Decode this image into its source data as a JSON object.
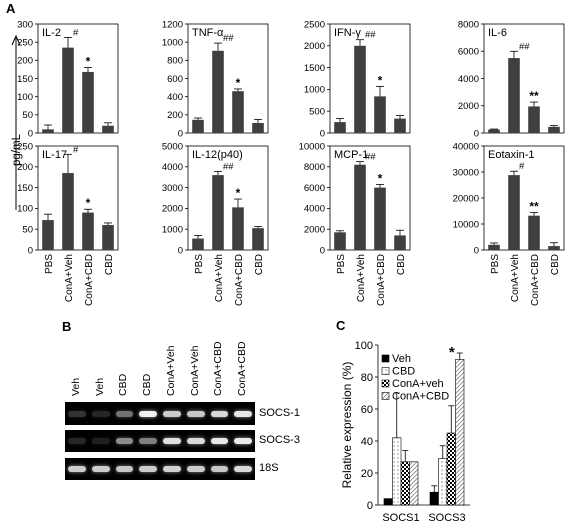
{
  "panel_letters": {
    "a": "A",
    "b": "B",
    "c": "C"
  },
  "panel_a": {
    "ylabel": "pg/mL",
    "categories": [
      "PBS",
      "ConA+Veh",
      "ConA+CBD",
      "CBD"
    ]
  },
  "chart_data": [
    {
      "type": "bar",
      "title": "IL-2",
      "categories": [
        "PBS",
        "ConA+Veh",
        "ConA+CBD",
        "CBD"
      ],
      "values": [
        10,
        235,
        168,
        20
      ],
      "errors": [
        12,
        28,
        12,
        8
      ],
      "marks": [
        "",
        "#",
        "*",
        ""
      ],
      "ylim": [
        0,
        300
      ],
      "yticks": [
        0,
        50,
        100,
        150,
        200,
        250,
        300
      ]
    },
    {
      "type": "bar",
      "title": "TNF-α",
      "categories": [
        "PBS",
        "ConA+Veh",
        "ConA+CBD",
        "CBD"
      ],
      "values": [
        145,
        905,
        460,
        110
      ],
      "errors": [
        20,
        85,
        25,
        40
      ],
      "marks": [
        "",
        "##",
        "*",
        ""
      ],
      "ylim": [
        0,
        1200
      ],
      "yticks": [
        0,
        200,
        400,
        600,
        800,
        1000,
        1200
      ]
    },
    {
      "type": "bar",
      "title": "IFN-γ",
      "categories": [
        "PBS",
        "ConA+Veh",
        "ConA+CBD",
        "CBD"
      ],
      "values": [
        250,
        2000,
        840,
        330
      ],
      "errors": [
        80,
        140,
        230,
        70
      ],
      "marks": [
        "",
        "##",
        "*",
        ""
      ],
      "ylim": [
        0,
        2500
      ],
      "yticks": [
        0,
        500,
        1000,
        1500,
        2000,
        2500
      ]
    },
    {
      "type": "bar",
      "title": "IL-6",
      "categories": [
        "PBS",
        "ConA+Veh",
        "ConA+CBD",
        "CBD"
      ],
      "values": [
        250,
        5500,
        1950,
        450
      ],
      "errors": [
        40,
        500,
        320,
        90
      ],
      "marks": [
        "",
        "##",
        "**",
        ""
      ],
      "ylim": [
        0,
        8000
      ],
      "yticks": [
        0,
        2000,
        4000,
        6000,
        8000
      ]
    },
    {
      "type": "bar",
      "title": "IL-17",
      "categories": [
        "PBS",
        "ConA+Veh",
        "ConA+CBD",
        "CBD"
      ],
      "values": [
        72,
        185,
        90,
        60
      ],
      "errors": [
        14,
        45,
        8,
        5
      ],
      "marks": [
        "",
        "#",
        "*",
        ""
      ],
      "ylim": [
        0,
        250
      ],
      "yticks": [
        0,
        50,
        100,
        150,
        200,
        250
      ]
    },
    {
      "type": "bar",
      "title": "IL-12(p40)",
      "categories": [
        "PBS",
        "ConA+Veh",
        "ConA+CBD",
        "CBD"
      ],
      "values": [
        550,
        3600,
        2050,
        1050
      ],
      "errors": [
        150,
        180,
        400,
        80
      ],
      "marks": [
        "",
        "##",
        "*",
        ""
      ],
      "ylim": [
        0,
        5000
      ],
      "yticks": [
        0,
        1000,
        2000,
        3000,
        4000,
        5000
      ]
    },
    {
      "type": "bar",
      "title": "MCP-1",
      "categories": [
        "PBS",
        "ConA+Veh",
        "ConA+CBD",
        "CBD"
      ],
      "values": [
        1700,
        8200,
        6000,
        1400
      ],
      "errors": [
        150,
        300,
        300,
        500
      ],
      "marks": [
        "",
        "##",
        "*",
        ""
      ],
      "ylim": [
        0,
        10000
      ],
      "yticks": [
        0,
        2000,
        4000,
        6000,
        8000,
        10000
      ]
    },
    {
      "type": "bar",
      "title": "Eotaxin-1",
      "categories": [
        "PBS",
        "ConA+Veh",
        "ConA+CBD",
        "CBD"
      ],
      "values": [
        2000,
        28800,
        13200,
        1500
      ],
      "errors": [
        700,
        1500,
        1200,
        1300
      ],
      "marks": [
        "",
        "#",
        "**",
        ""
      ],
      "ylim": [
        0,
        40000
      ],
      "yticks": [
        0,
        10000,
        20000,
        30000,
        40000
      ]
    },
    {
      "type": "bar",
      "categories": [
        "SOCS1",
        "SOCS3"
      ],
      "series": [
        {
          "name": "Veh",
          "values": [
            4,
            8
          ],
          "errors": [
            0,
            4
          ]
        },
        {
          "name": "CBD",
          "values": [
            42,
            29
          ],
          "errors": [
            28,
            8
          ]
        },
        {
          "name": "ConA+veh",
          "values": [
            27,
            45
          ],
          "errors": [
            7,
            17
          ]
        },
        {
          "name": "ConA+CBD",
          "values": [
            27,
            91
          ],
          "errors": [
            0,
            4
          ]
        }
      ],
      "marks": [
        [
          "",
          "",
          "",
          ""
        ],
        [
          "",
          "",
          "",
          "*"
        ]
      ],
      "ylabel": "Relative expression (%)",
      "ylim": [
        0,
        100
      ],
      "yticks": [
        0,
        20,
        40,
        60,
        80,
        100
      ],
      "legend": "top-left"
    }
  ],
  "panel_b": {
    "lanes": [
      "Veh",
      "Veh",
      "CBD",
      "CBD",
      "ConA+Veh",
      "ConA+Veh",
      "ConA+CBD",
      "ConA+CBD"
    ],
    "genes": [
      "SOCS-1",
      "SOCS-3",
      "18S"
    ],
    "band_intensity": [
      [
        0.2,
        0.15,
        0.45,
        0.95,
        0.8,
        0.78,
        0.85,
        0.9
      ],
      [
        0.15,
        0.12,
        0.55,
        0.5,
        0.88,
        0.85,
        0.9,
        0.92
      ],
      [
        0.8,
        0.8,
        0.78,
        0.8,
        0.82,
        0.8,
        0.78,
        0.85
      ]
    ]
  },
  "colors": {
    "bar": "#3f3f3f",
    "axis": "#000000"
  }
}
